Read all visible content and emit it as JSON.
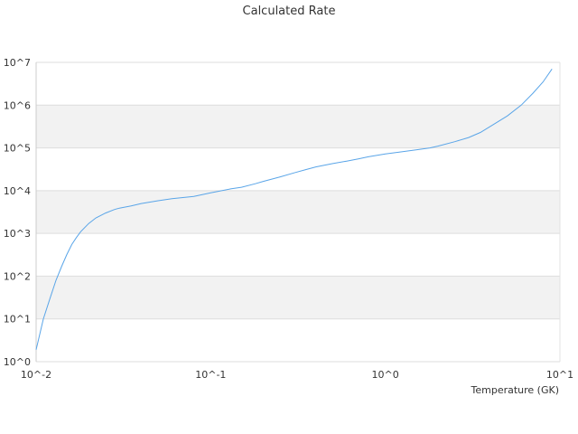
{
  "chart_data": {
    "type": "line",
    "title": "Calculated Rate",
    "xlabel": "Temperature (GK)",
    "ylabel": "",
    "x_scale": "log",
    "y_scale": "log",
    "xlim": [
      0.01,
      10
    ],
    "ylim": [
      1,
      10000000
    ],
    "x_ticks": [
      "10^-2",
      "10^-1",
      "10^0",
      "10^1"
    ],
    "y_ticks": [
      "10^0",
      "10^1",
      "10^2",
      "10^3",
      "10^4",
      "10^5",
      "10^6",
      "10^7"
    ],
    "grid": "alternating horizontal bands",
    "legend": "none",
    "colors": {
      "line": "#5aa5e8",
      "band": "#f2f2f2",
      "gridline": "#dddddd",
      "text": "#333333"
    },
    "series": [
      {
        "x": [
          0.01,
          0.011,
          0.012,
          0.013,
          0.014,
          0.015,
          0.016,
          0.017,
          0.018,
          0.02,
          0.022,
          0.025,
          0.028,
          0.03,
          0.035,
          0.04,
          0.05,
          0.06,
          0.08,
          0.1,
          0.13,
          0.15,
          0.18,
          0.2,
          0.25,
          0.3,
          0.35,
          0.4,
          0.5,
          0.6,
          0.7,
          0.8,
          1.0,
          1.2,
          1.5,
          1.8,
          2.0,
          2.5,
          3.0,
          3.5,
          4.0,
          5.0,
          6.0,
          7.0,
          8.0,
          9.0
        ],
        "y": [
          1.9,
          10,
          30,
          80,
          170,
          320,
          550,
          800,
          1100,
          1700,
          2300,
          3000,
          3600,
          3900,
          4400,
          5000,
          5800,
          6500,
          7300,
          8900,
          11000,
          12000,
          14500,
          16500,
          21000,
          26000,
          31000,
          36000,
          43000,
          49000,
          55000,
          62000,
          72000,
          80000,
          90000,
          100000,
          110000,
          140000,
          175000,
          230000,
          320000,
          560000,
          1000000,
          1900000,
          3500000,
          7000000
        ]
      }
    ]
  }
}
